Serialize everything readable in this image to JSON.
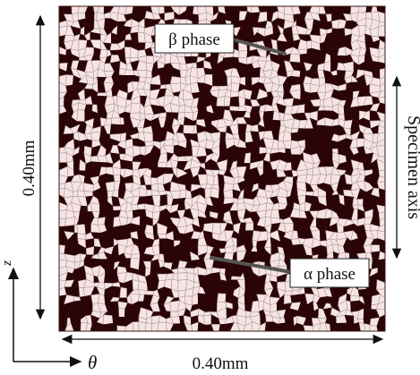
{
  "labels": {
    "beta_phase": "β phase",
    "alpha_phase": "α phase",
    "height_dim": "0.40mm",
    "width_dim": "0.40mm",
    "specimen_axis": "Specimen axis",
    "axis_z": "z",
    "axis_theta": "θ"
  },
  "colors": {
    "alpha_grain": "#2a0406",
    "beta_grain": "#f6e4e4",
    "grain_boundary": "#a08c8c",
    "arrow": "#555555",
    "ink": "#111111"
  },
  "microstructure": {
    "dark_fraction": 0.42,
    "grain_columns": 49,
    "grain_rows": 46
  }
}
